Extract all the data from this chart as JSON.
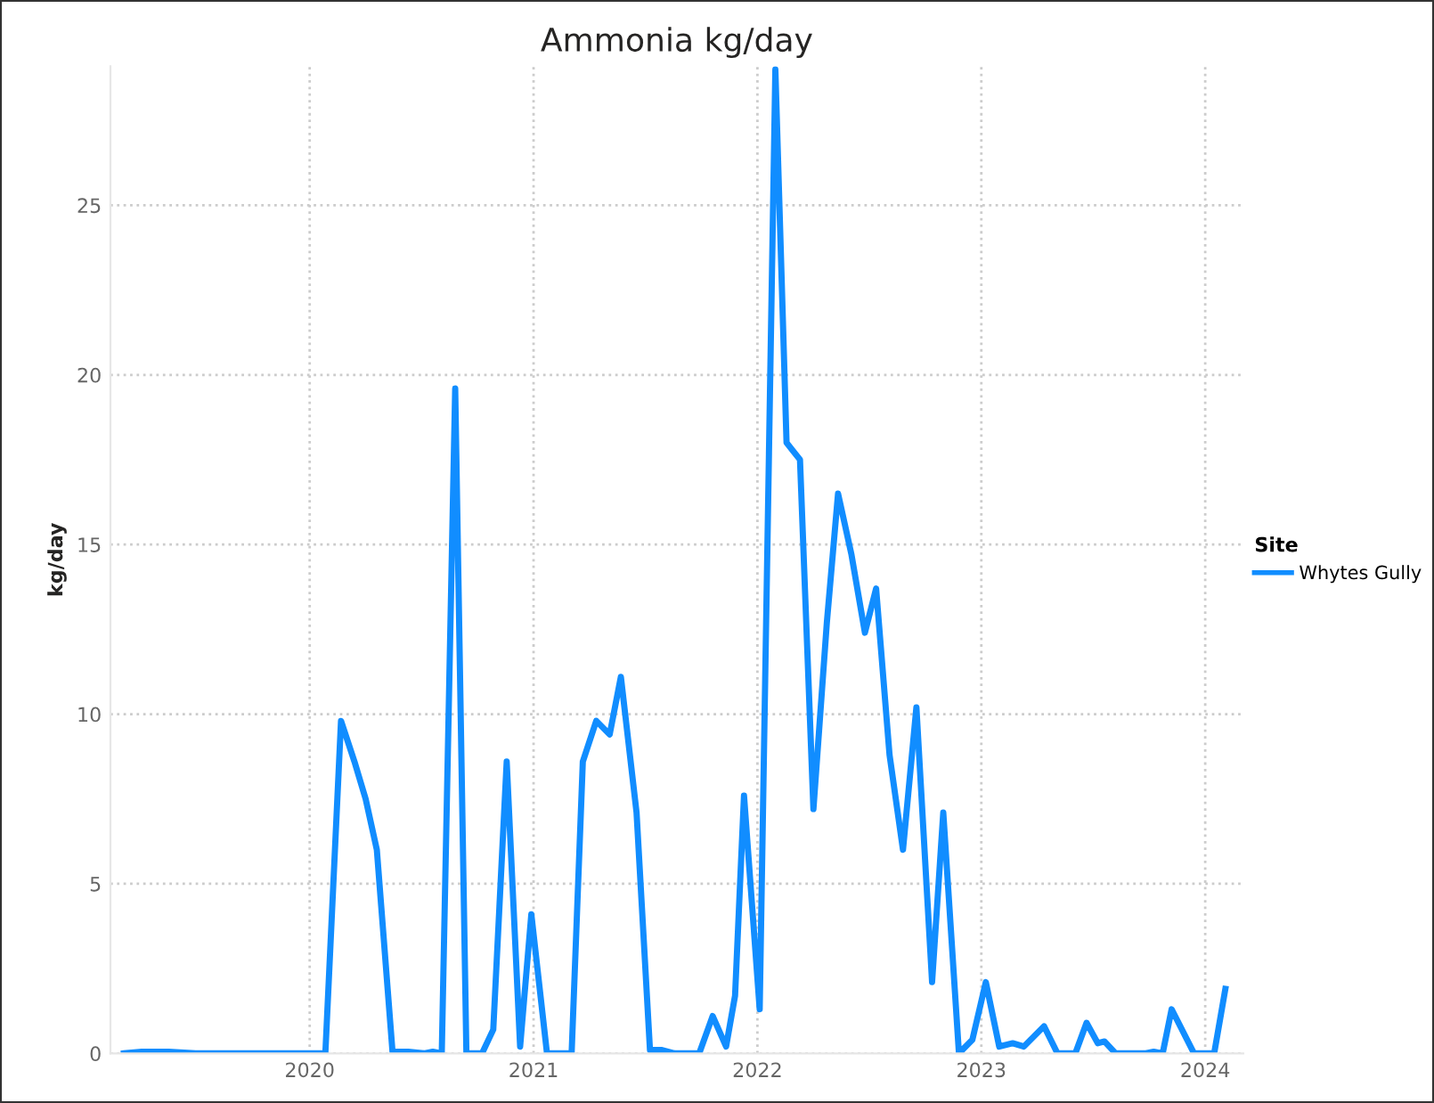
{
  "chart_data": {
    "type": "line",
    "title": "Ammonia kg/day",
    "ylabel": "kg/day",
    "legend_title": "Site",
    "x": [
      2019.17,
      2019.25,
      2019.37,
      2019.49,
      2020.07,
      2020.14,
      2020.2,
      2020.25,
      2020.3,
      2020.37,
      2020.44,
      2020.51,
      2020.55,
      2020.59,
      2020.65,
      2020.7,
      2020.77,
      2020.82,
      2020.88,
      2020.94,
      2020.99,
      2021.06,
      2021.17,
      2021.22,
      2021.28,
      2021.34,
      2021.39,
      2021.46,
      2021.52,
      2021.57,
      2021.63,
      2021.74,
      2021.8,
      2021.86,
      2021.9,
      2021.94,
      2022.01,
      2022.08,
      2022.13,
      2022.19,
      2022.25,
      2022.31,
      2022.36,
      2022.42,
      2022.48,
      2022.53,
      2022.59,
      2022.65,
      2022.71,
      2022.78,
      2022.83,
      2022.9,
      2022.96,
      2023.02,
      2023.08,
      2023.14,
      2023.19,
      2023.28,
      2023.34,
      2023.42,
      2023.47,
      2023.52,
      2023.55,
      2023.6,
      2023.73,
      2023.77,
      2023.81,
      2023.85,
      2023.95,
      2024.04,
      2024.09
    ],
    "series": [
      {
        "name": "Whytes Gully",
        "color": "#118dff",
        "values": [
          0,
          0.05,
          0.05,
          0,
          0,
          9.8,
          8.6,
          7.5,
          6.0,
          0.05,
          0.05,
          0,
          0.05,
          0,
          19.6,
          0,
          0,
          0.7,
          8.6,
          0.2,
          4.1,
          0,
          0,
          8.6,
          9.8,
          9.4,
          11.1,
          7.1,
          0.1,
          0.1,
          0,
          0,
          1.1,
          0.2,
          1.7,
          7.6,
          1.3,
          29.0,
          18.0,
          17.5,
          7.2,
          12.7,
          16.5,
          14.7,
          12.4,
          13.7,
          8.8,
          6.0,
          10.2,
          2.1,
          7.1,
          0,
          0.4,
          2.1,
          0.2,
          0.3,
          0.2,
          0.8,
          0,
          0,
          0.9,
          0.3,
          0.35,
          0,
          0,
          0.05,
          0,
          1.3,
          0,
          0,
          1.9
        ]
      }
    ],
    "xlim": [
      2019.11,
      2024.17
    ],
    "xticks": [
      2020,
      2021,
      2022,
      2023,
      2024
    ],
    "ylim": [
      0,
      29.1
    ],
    "yticks": [
      0,
      5,
      10,
      15,
      20,
      25
    ],
    "grid": true,
    "legend": "right",
    "marker": "none",
    "line_style": "solid"
  }
}
